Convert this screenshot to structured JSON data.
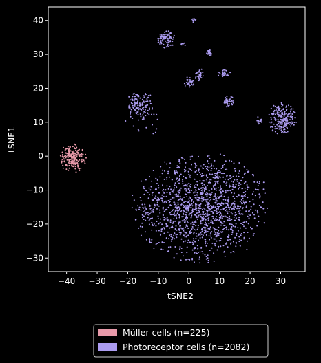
{
  "chart_data": {
    "type": "scatter",
    "xlabel": "tSNE2",
    "ylabel": "tSNE1",
    "xlim": [
      -46,
      38
    ],
    "ylim": [
      -34,
      44
    ],
    "xticks": [
      -40,
      -30,
      -20,
      -10,
      0,
      10,
      20,
      30
    ],
    "yticks": [
      -30,
      -20,
      -10,
      0,
      10,
      20,
      30,
      40
    ],
    "grid": false,
    "background": "#000000",
    "legend_position": "bottom-center-outside",
    "legend": [
      {
        "label": "Müller cells (n=225)",
        "color": "#e89aaa"
      },
      {
        "label": "Photoreceptor cells (n=2082)",
        "color": "#ac9cf0"
      }
    ],
    "series": [
      {
        "label_ref": 0,
        "color": "#e89aaa",
        "n": 225,
        "clusters": [
          {
            "center": [
              -38,
              -0.5
            ],
            "spread": [
              2.0,
              2.0
            ],
            "count": 225
          }
        ]
      },
      {
        "label_ref": 1,
        "color": "#ac9cf0",
        "n": 2082,
        "clusters": [
          {
            "center": [
              4,
              -15
            ],
            "spread": [
              10.5,
              7.5
            ],
            "count": 1450
          },
          {
            "center": [
              30.5,
              11
            ],
            "spread": [
              2.2,
              2.2
            ],
            "count": 200
          },
          {
            "center": [
              -16,
              15
            ],
            "spread": [
              2.3,
              2.0
            ],
            "count": 130
          },
          {
            "center": [
              -7.5,
              34.5
            ],
            "spread": [
              1.5,
              1.3
            ],
            "count": 90
          },
          {
            "center": [
              13,
              16
            ],
            "spread": [
              0.9,
              0.9
            ],
            "count": 40
          },
          {
            "center": [
              11.5,
              24.5
            ],
            "spread": [
              1.0,
              0.6
            ],
            "count": 30
          },
          {
            "center": [
              3.5,
              24
            ],
            "spread": [
              0.8,
              0.9
            ],
            "count": 30
          },
          {
            "center": [
              0,
              21.5
            ],
            "spread": [
              0.9,
              0.9
            ],
            "count": 35
          },
          {
            "center": [
              6.5,
              30.5
            ],
            "spread": [
              0.6,
              0.6
            ],
            "count": 25
          },
          {
            "center": [
              23,
              10.5
            ],
            "spread": [
              0.5,
              0.6
            ],
            "count": 15
          },
          {
            "center": [
              1.8,
              40
            ],
            "spread": [
              0.4,
              0.3
            ],
            "count": 12
          },
          {
            "center": [
              -2,
              33
            ],
            "spread": [
              0.4,
              0.3
            ],
            "count": 6
          },
          {
            "center": [
              -14,
              12
            ],
            "spread": [
              4.0,
              3.0
            ],
            "count": 19
          }
        ]
      }
    ]
  }
}
